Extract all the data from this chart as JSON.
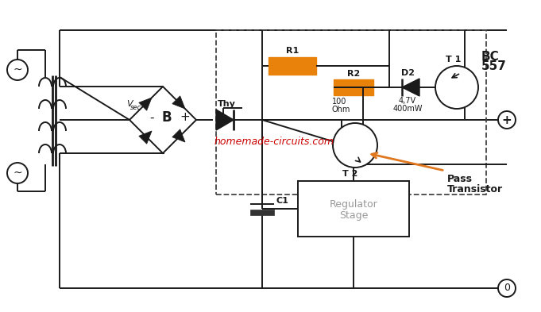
{
  "bg_color": "#ffffff",
  "line_color": "#1a1a1a",
  "orange_color": "#e8820a",
  "red_text_color": "#cc0000",
  "orange_arrow_color": "#e07820",
  "watermark": "homemade-circuits.com",
  "labels": {
    "vsec": "V sec",
    "B": "B",
    "R1": "R1",
    "R2": "R2",
    "D2": "D2",
    "T1": "T 1",
    "T2": "T 2",
    "Thy": "Thy",
    "C1": "C1",
    "BC": "BC",
    "bc557_line2": "557",
    "r2_val1": "100",
    "r2_val2": "Ohm",
    "d2_val1": "4,7V",
    "d2_val2": "400mW",
    "reg_stage": "Regulator\nStage",
    "pass_transistor_1": "Pass",
    "pass_transistor_2": "Transistor",
    "plus": "+",
    "zero": "0"
  }
}
